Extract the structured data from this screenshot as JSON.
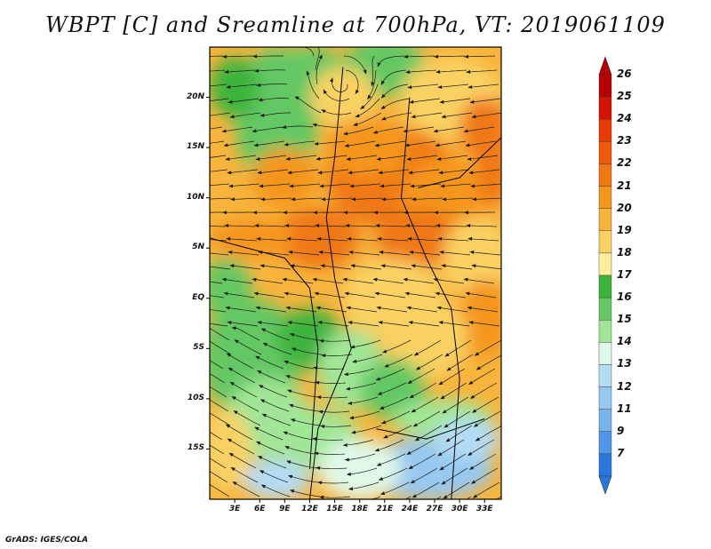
{
  "title": "WBPT [C] and Sreamline at 700hPa, VT: 2019061109",
  "credit": "GrADS: IGES/COLA",
  "map": {
    "lon_range": [
      0,
      35
    ],
    "lat_range": [
      -20,
      25
    ],
    "lat_ticks": [
      {
        "lat": 20,
        "label": "20N"
      },
      {
        "lat": 15,
        "label": "15N"
      },
      {
        "lat": 10,
        "label": "10N"
      },
      {
        "lat": 5,
        "label": "5N"
      },
      {
        "lat": 0,
        "label": "EQ"
      },
      {
        "lat": -5,
        "label": "5S"
      },
      {
        "lat": -10,
        "label": "10S"
      },
      {
        "lat": -15,
        "label": "15S"
      }
    ],
    "lon_ticks": [
      {
        "lon": 3,
        "label": "3E"
      },
      {
        "lon": 6,
        "label": "6E"
      },
      {
        "lon": 9,
        "label": "9E"
      },
      {
        "lon": 12,
        "label": "12E"
      },
      {
        "lon": 15,
        "label": "15E"
      },
      {
        "lon": 18,
        "label": "18E"
      },
      {
        "lon": 21,
        "label": "21E"
      },
      {
        "lon": 24,
        "label": "24E"
      },
      {
        "lon": 27,
        "label": "27E"
      },
      {
        "lon": 30,
        "label": "30E"
      },
      {
        "lon": 33,
        "label": "33E"
      }
    ]
  },
  "colorbar": {
    "levels": [
      {
        "label": "26",
        "color": "#b40000"
      },
      {
        "label": "25",
        "color": "#d21400"
      },
      {
        "label": "24",
        "color": "#e63c00"
      },
      {
        "label": "23",
        "color": "#f05a0a"
      },
      {
        "label": "22",
        "color": "#f07814"
      },
      {
        "label": "21",
        "color": "#f5961e"
      },
      {
        "label": "20",
        "color": "#f8b43c"
      },
      {
        "label": "19",
        "color": "#fad264"
      },
      {
        "label": "18",
        "color": "#fcee9c"
      },
      {
        "label": "17",
        "color": "#3cb43c"
      },
      {
        "label": "16",
        "color": "#64c864"
      },
      {
        "label": "15",
        "color": "#a0e696"
      },
      {
        "label": "14",
        "color": "#e0f8e8"
      },
      {
        "label": "13",
        "color": "#b4dcf5"
      },
      {
        "label": "12",
        "color": "#96c8f0"
      },
      {
        "label": "11",
        "color": "#78b4eb"
      },
      {
        "label": "9",
        "color": "#5096e6"
      },
      {
        "label": "7",
        "color": "#2878dc"
      }
    ],
    "top_arrow_color": "#b40000",
    "bottom_arrow_color": "#2878dc"
  }
}
